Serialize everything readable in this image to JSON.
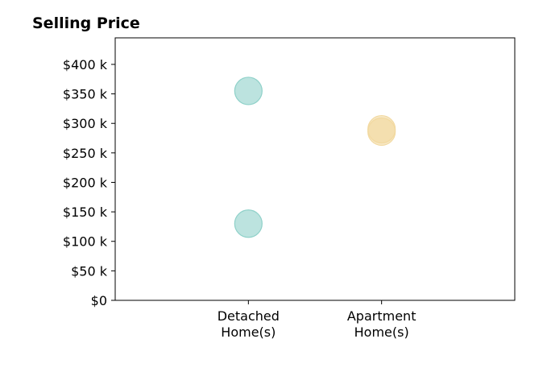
{
  "chart_data": {
    "type": "scatter",
    "title": "Selling Price",
    "xlabel": "",
    "ylabel": "",
    "categories": [
      [
        "Detached",
        "Home(s)"
      ],
      [
        "Apartment",
        "Home(s)"
      ]
    ],
    "y_ticks": [
      0,
      50000,
      100000,
      150000,
      200000,
      250000,
      300000,
      350000,
      400000
    ],
    "y_tick_labels": [
      "$0",
      "$50 k",
      "$100 k",
      "$150 k",
      "$200 k",
      "$250 k",
      "$300 k",
      "$350 k",
      "$400 k"
    ],
    "ylim": [
      0,
      445000
    ],
    "x_range": [
      -1,
      2
    ],
    "grid": false,
    "legend": "none",
    "series": [
      {
        "category_index": 0,
        "values": [
          355000,
          130000
        ],
        "color": "#8fd1c9"
      },
      {
        "category_index": 1,
        "values": [
          290000,
          286000
        ],
        "color": "#f2d9a0"
      }
    ]
  }
}
